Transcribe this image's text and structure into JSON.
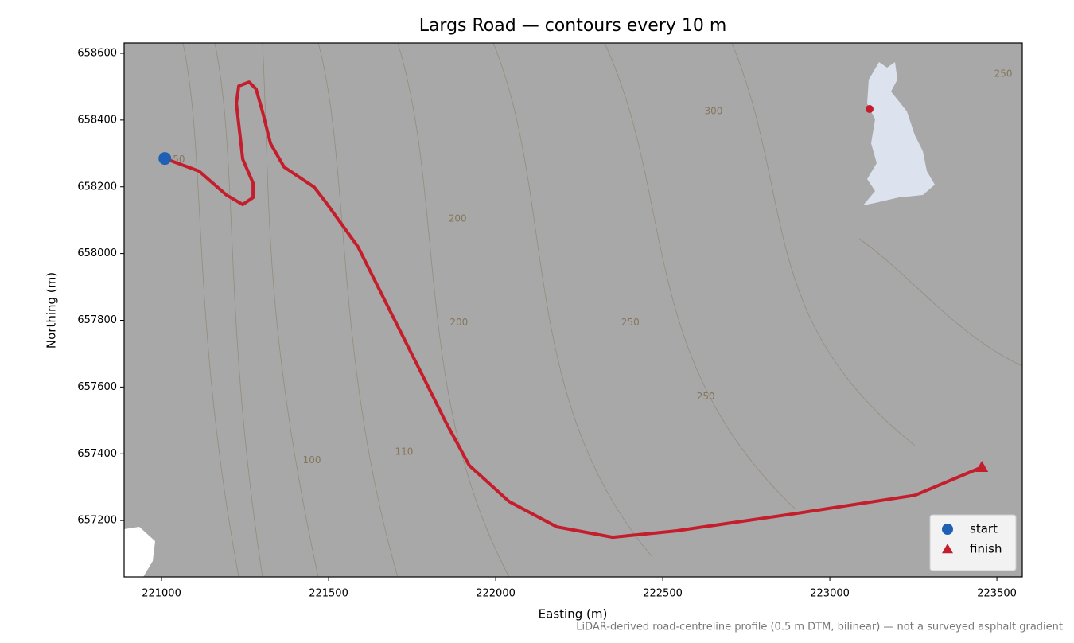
{
  "chart_data": {
    "type": "line",
    "title": "Largs Road — contours every 10 m",
    "xlabel": "Easting (m)",
    "ylabel": "Northing (m)",
    "note": "LiDAR-derived road-centreline profile (0.5 m DTM, bilinear) — not a surveyed asphalt gradient",
    "x": [
      221010,
      221112,
      221195,
      221243,
      221274,
      221274,
      221243,
      221224,
      221231,
      221262,
      221283,
      221302,
      221326,
      221367,
      221457,
      221493,
      221588,
      221683,
      221779,
      221850,
      221921,
      222040,
      222183,
      222350,
      222540,
      222898,
      223255,
      223455
    ],
    "y": [
      658285,
      658247,
      658175,
      658147,
      658168,
      658211,
      658283,
      658450,
      658502,
      658514,
      658493,
      658426,
      658330,
      658259,
      658199,
      658152,
      658020,
      657830,
      657639,
      657496,
      657365,
      657257,
      657181,
      657150,
      657169,
      657221,
      657276,
      657360
    ],
    "color": "#c41e2c",
    "markers": [
      {
        "name": "start",
        "x": 221010,
        "y": 658285,
        "color": "#1f5fb4",
        "marker": "circle"
      },
      {
        "name": "finish",
        "x": 223455,
        "y": 657360,
        "color": "#c41e2c",
        "marker": "triangle"
      }
    ],
    "annotations": [
      {
        "text": "50",
        "x": 221052,
        "y": 658282
      },
      {
        "text": "100",
        "x": 221450,
        "y": 657380
      },
      {
        "text": "110",
        "x": 221726,
        "y": 657405
      },
      {
        "text": "200",
        "x": 221886,
        "y": 658104
      },
      {
        "text": "200",
        "x": 221890,
        "y": 657793
      },
      {
        "text": "250",
        "x": 222403,
        "y": 657793
      },
      {
        "text": "250",
        "x": 222629,
        "y": 657571
      },
      {
        "text": "300",
        "x": 222652,
        "y": 658426
      },
      {
        "text": "250",
        "x": 223519,
        "y": 658538
      }
    ],
    "xlim": [
      220888,
      223576
    ],
    "ylim": [
      657031,
      658631
    ],
    "xticks": [
      221000,
      221500,
      222000,
      222500,
      223000,
      223500
    ],
    "yticks": [
      657200,
      657400,
      657600,
      657800,
      658000,
      658200,
      658400,
      658600
    ],
    "legend": "lower right"
  }
}
